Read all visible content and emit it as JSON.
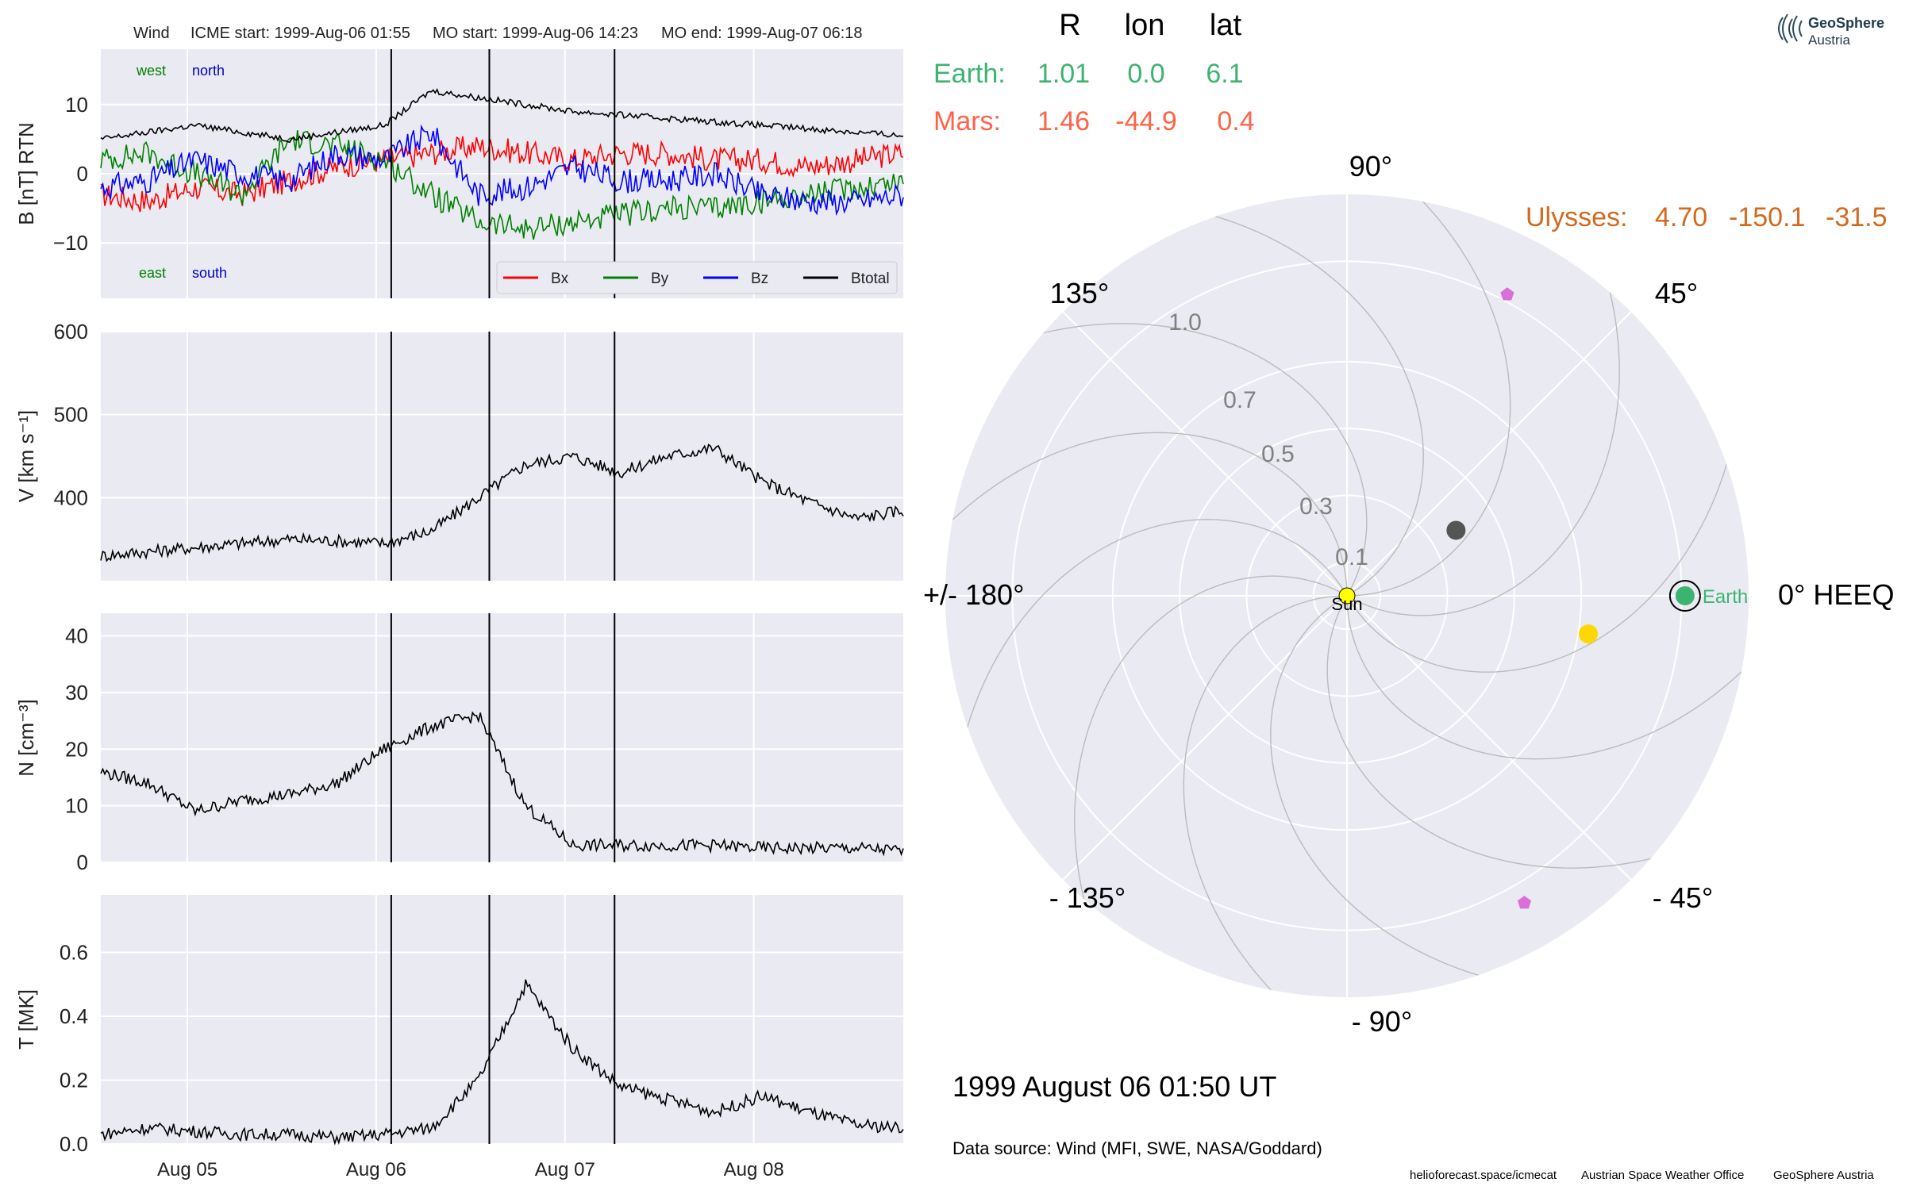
{
  "header": {
    "spacecraft": "Wind",
    "icme_start": "ICME start: 1999-Aug-06 01:55",
    "mo_start": "MO start: 1999-Aug-06 14:23",
    "mo_end": "MO end: 1999-Aug-07 06:18"
  },
  "logo": {
    "line1": "GeoSphere",
    "line2": "Austria"
  },
  "positions_table": {
    "columns": [
      "R",
      "lon",
      "lat"
    ],
    "rows": [
      {
        "name": "Earth:",
        "R": "1.01",
        "lon": "0.0",
        "lat": "6.1",
        "color": "#3cb371"
      },
      {
        "name": "Mars:",
        "R": "1.46",
        "lon": "-44.9",
        "lat": "0.4",
        "color": "#ff6347"
      }
    ],
    "ulysses": {
      "name": "Ulysses:",
      "R": "4.70",
      "lon": "-150.1",
      "lat": "-31.5",
      "color": "#d2691e"
    }
  },
  "polar": {
    "angle_labels": [
      {
        "deg": 0,
        "text": "0° HEEQ"
      },
      {
        "deg": 45,
        "text": "45°"
      },
      {
        "deg": 90,
        "text": "90°"
      },
      {
        "deg": 135,
        "text": "135°"
      },
      {
        "deg": 180,
        "text": "+/- 180°"
      },
      {
        "deg": 225,
        "text": "- 135°"
      },
      {
        "deg": 270,
        "text": "- 90°"
      },
      {
        "deg": 315,
        "text": "- 45°"
      }
    ],
    "radial_ticks": [
      "0.1",
      "0.3",
      "0.5",
      "0.7",
      "1.0"
    ],
    "sun_label": "Sun",
    "earth_label": "Earth",
    "bodies": [
      {
        "name": "Sun",
        "r": 0.0,
        "lon": 0,
        "color": "#ffff00",
        "shape": "circle"
      },
      {
        "name": "Earth",
        "r": 1.01,
        "lon": 0.0,
        "color": "#3cb371",
        "shape": "circle"
      },
      {
        "name": "dark-body",
        "r": 0.38,
        "lon": 31,
        "color": "#555555",
        "shape": "circle"
      },
      {
        "name": "yellow-body",
        "r": 0.73,
        "lon": -9,
        "color": "#ffd700",
        "shape": "circle"
      },
      {
        "name": "violet-marker-1",
        "r": 1.02,
        "lon": 62,
        "color": "#da70d6",
        "shape": "pentagon"
      },
      {
        "name": "violet-marker-2",
        "r": 1.06,
        "lon": -60,
        "color": "#da70d6",
        "shape": "pentagon"
      }
    ]
  },
  "timestamp": "1999 August 06  01:50 UT",
  "data_source": "Data source: Wind (MFI, SWE, NASA/Goddard)",
  "footer": {
    "site": "helioforecast.space/icmecat",
    "office": "Austrian Space Weather Office",
    "org": "GeoSphere Austria"
  },
  "chart_data": {
    "type": "line",
    "x_range": [
      "1999-08-04 13:00",
      "1999-08-08 19:00"
    ],
    "x_ticks": [
      "Aug 05",
      "Aug 06",
      "Aug 07",
      "Aug 08"
    ],
    "event_lines": [
      "1999-08-06 01:55",
      "1999-08-06 14:23",
      "1999-08-07 06:18"
    ],
    "panels": [
      {
        "ylabel": "B [nT] RTN",
        "ylim": [
          -18,
          18
        ],
        "yticks": [
          "10",
          "0",
          "−10"
        ],
        "annotations": {
          "west": "west",
          "north": "north",
          "east": "east",
          "south": "south"
        },
        "legend": [
          "Bx",
          "By",
          "Bz",
          "Btotal"
        ],
        "series": [
          {
            "name": "Bx",
            "color": "#ff0000",
            "t_hours": [
              0,
              6,
              12,
              18,
              24,
              30,
              36,
              42,
              48,
              54,
              60,
              66,
              72,
              78,
              84,
              90,
              96,
              102
            ],
            "values": [
              -3,
              -4,
              -2,
              -3,
              -1,
              1,
              2,
              3,
              4,
              3,
              2,
              3,
              3,
              2,
              2,
              1,
              2,
              3
            ]
          },
          {
            "name": "By",
            "color": "#008000",
            "t_hours": [
              0,
              6,
              12,
              18,
              24,
              30,
              36,
              42,
              48,
              54,
              60,
              66,
              72,
              78,
              84,
              90,
              96,
              102
            ],
            "values": [
              2,
              3,
              0,
              -3,
              5,
              4,
              2,
              -3,
              -7,
              -8,
              -7,
              -6,
              -5,
              -5,
              -4,
              -3,
              -2,
              -1
            ]
          },
          {
            "name": "Bz",
            "color": "#0000ff",
            "t_hours": [
              0,
              6,
              12,
              18,
              24,
              30,
              36,
              42,
              48,
              54,
              60,
              66,
              72,
              78,
              84,
              90,
              96,
              102
            ],
            "values": [
              -2,
              -1,
              2,
              0,
              -1,
              3,
              2,
              6,
              -3,
              -2,
              1,
              -1,
              -1,
              0,
              -3,
              -4,
              -4,
              -3
            ]
          },
          {
            "name": "Btotal",
            "color": "#000000",
            "t_hours": [
              0,
              6,
              12,
              18,
              24,
              30,
              36,
              42,
              48,
              54,
              60,
              66,
              72,
              78,
              84,
              90,
              96,
              102
            ],
            "values": [
              5,
              6,
              7,
              6,
              5,
              6,
              7,
              12,
              11,
              10,
              9,
              8.5,
              8,
              7.5,
              7,
              6.5,
              6,
              5.5
            ]
          }
        ]
      },
      {
        "ylabel": "V [km s⁻¹]",
        "ylim": [
          300,
          600
        ],
        "yticks": [
          "600",
          "500",
          "400"
        ],
        "series": [
          {
            "name": "V",
            "color": "#000000",
            "t_hours": [
              0,
              6,
              12,
              18,
              24,
              30,
              36,
              42,
              48,
              54,
              60,
              66,
              72,
              78,
              84,
              90,
              96,
              102
            ],
            "values": [
              330,
              335,
              340,
              345,
              350,
              348,
              345,
              360,
              400,
              440,
              450,
              430,
              450,
              460,
              420,
              395,
              375,
              385
            ]
          }
        ]
      },
      {
        "ylabel": "N [cm⁻³]",
        "ylim": [
          0,
          44
        ],
        "yticks": [
          "40",
          "30",
          "20",
          "10",
          "0"
        ],
        "series": [
          {
            "name": "N",
            "color": "#000000",
            "t_hours": [
              0,
              6,
              12,
              18,
              24,
              30,
              36,
              42,
              48,
              54,
              60,
              66,
              72,
              78,
              84,
              90,
              96,
              102
            ],
            "values": [
              16,
              14,
              9,
              11,
              12,
              14,
              20,
              24,
              26,
              10,
              3,
              3,
              3,
              3,
              2.5,
              2.5,
              2.5,
              2
            ]
          }
        ]
      },
      {
        "ylabel": "T [MK]",
        "ylim": [
          0,
          0.78
        ],
        "yticks": [
          "0.6",
          "0.4",
          "0.2",
          "0.0"
        ],
        "series": [
          {
            "name": "T",
            "color": "#000000",
            "t_hours": [
              0,
              6,
              12,
              18,
              24,
              30,
              36,
              42,
              48,
              54,
              60,
              66,
              72,
              78,
              84,
              90,
              96,
              102
            ],
            "values": [
              0.03,
              0.05,
              0.04,
              0.03,
              0.03,
              0.02,
              0.03,
              0.05,
              0.2,
              0.5,
              0.3,
              0.18,
              0.14,
              0.1,
              0.15,
              0.1,
              0.06,
              0.05
            ]
          }
        ]
      }
    ]
  }
}
